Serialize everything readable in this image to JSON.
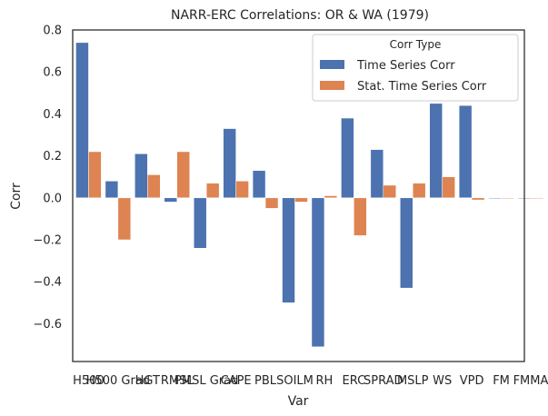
{
  "chart_data": {
    "type": "bar",
    "title": "NARR-ERC Correlations: OR & WA (1979)",
    "xlabel": "Var",
    "ylabel": "Corr",
    "ylim": [
      -0.78,
      0.8
    ],
    "yticks": [
      {
        "v": 0.8,
        "label": "0.8"
      },
      {
        "v": 0.6,
        "label": "0.6"
      },
      {
        "v": 0.4,
        "label": "0.4"
      },
      {
        "v": 0.2,
        "label": "0.2"
      },
      {
        "v": 0.0,
        "label": "0.0"
      },
      {
        "v": -0.2,
        "label": "−0.2"
      },
      {
        "v": -0.4,
        "label": "−0.4"
      },
      {
        "v": -0.6,
        "label": "−0.6"
      }
    ],
    "grid": false,
    "legend": {
      "title": "Corr Type",
      "placement": "top-right"
    },
    "categories": [
      "H500",
      "H500 Grad",
      "HGT",
      "RMSL",
      "PMSL Grad",
      "CAPE",
      "PBL",
      "SOILM",
      "RH",
      "ERC",
      "SPRAD",
      "MSLP",
      "WS",
      "VPD",
      "FM",
      "FMMA"
    ],
    "category_labels": [
      "H500",
      "H500 Grad",
      "HGT",
      "RMSL",
      "PMSL Grad",
      "CAPE",
      "PBL",
      "SOILM",
      "RH",
      "ERC",
      "SPRAD",
      "MSLP",
      "WS",
      "VPD",
      "FM",
      "FMMA"
    ],
    "series": [
      {
        "name": "Time Series Corr",
        "color": "#4c72b0",
        "values": [
          0.74,
          0.08,
          0.21,
          -0.02,
          -0.24,
          0.33,
          0.13,
          -0.5,
          -0.71,
          0.38,
          0.23,
          -0.43,
          0.45,
          0.44,
          0.0,
          0.0
        ]
      },
      {
        "name": "Stat. Time Series Corr",
        "color": "#dd8452",
        "values": [
          0.22,
          -0.2,
          0.11,
          0.22,
          0.07,
          0.08,
          -0.05,
          -0.02,
          0.01,
          -0.18,
          0.06,
          0.07,
          0.1,
          -0.01,
          0.0,
          0.0
        ]
      }
    ]
  }
}
